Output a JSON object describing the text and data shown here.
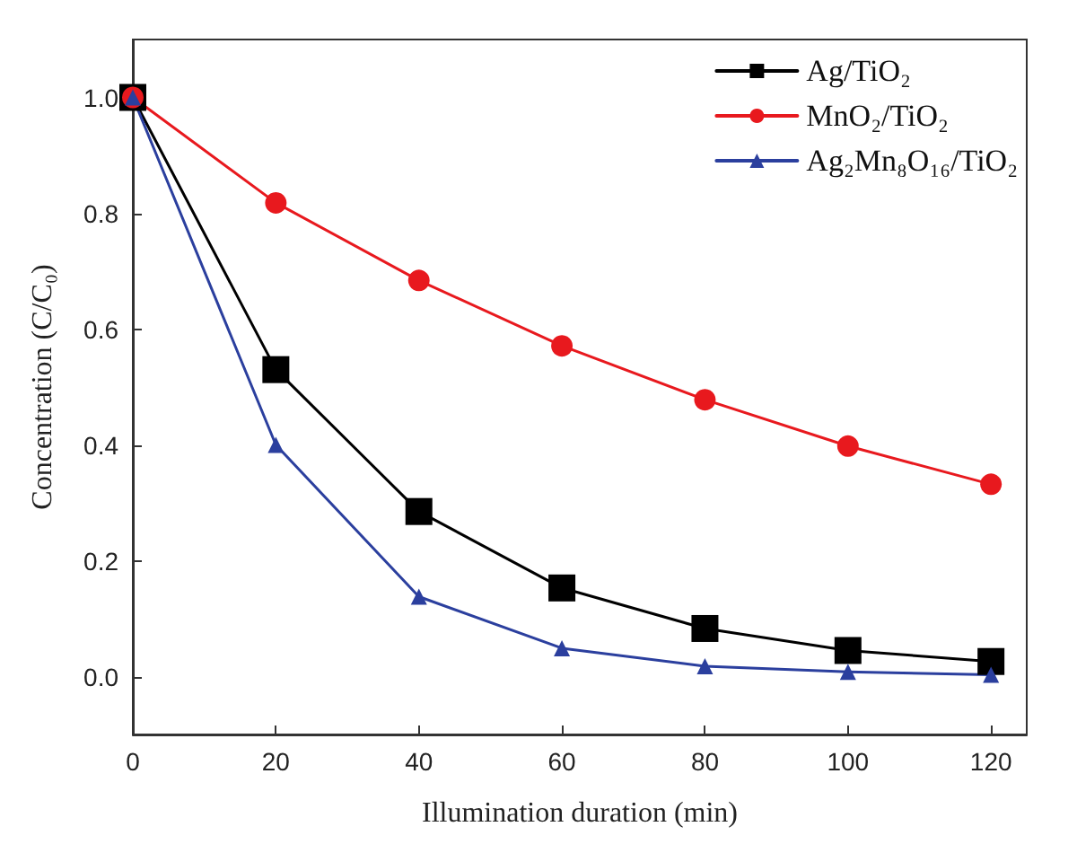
{
  "chart_data": {
    "type": "line",
    "xlabel": "Illumination duration (min)",
    "ylabel": "Concentration (C/C₀)",
    "x": [
      0,
      20,
      40,
      60,
      80,
      100,
      120
    ],
    "series": [
      {
        "name": "Ag/TiO₂",
        "color": "#000000",
        "marker": "square",
        "values": [
          1.0,
          0.53,
          0.285,
          0.153,
          0.083,
          0.045,
          0.026
        ]
      },
      {
        "name": "MnO₂/TiO₂",
        "color": "#e8191e",
        "marker": "circle",
        "values": [
          1.0,
          0.818,
          0.684,
          0.571,
          0.478,
          0.398,
          0.332
        ]
      },
      {
        "name": "Ag₂Mn₈O₁₆/TiO₂",
        "color": "#2b3f9e",
        "marker": "triangle",
        "values": [
          1.0,
          0.4,
          0.138,
          0.049,
          0.018,
          0.008,
          0.003
        ]
      }
    ],
    "xlim": [
      0,
      125
    ],
    "xticks": [
      0,
      20,
      40,
      60,
      80,
      100,
      120
    ],
    "ylim": [
      -0.1,
      1.1
    ],
    "yticks": [
      {
        "value": 0,
        "label": "0.0"
      },
      {
        "value": 0.2,
        "label": "0.2"
      },
      {
        "value": 0.4,
        "label": "0.4"
      },
      {
        "value": 0.6,
        "label": "0.6"
      },
      {
        "value": 0.8,
        "label": "0.8"
      },
      {
        "value": 1,
        "label": "1.0"
      }
    ],
    "grid": false,
    "legend": "top right",
    "line_style": "solid"
  }
}
